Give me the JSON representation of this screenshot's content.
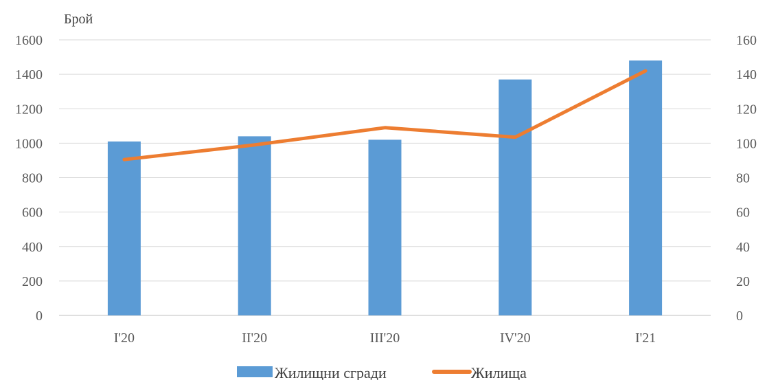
{
  "chart_data": {
    "type": "bar",
    "y_unit_label": "Брой",
    "categories": [
      "I'20",
      "II'20",
      "III'20",
      "IV'20",
      "I'21"
    ],
    "y_left": {
      "min": 0,
      "max": 1600,
      "step": 200
    },
    "y_right": {
      "min": 0,
      "max": 160,
      "step": 20
    },
    "series": [
      {
        "name": "Жилищни сгради",
        "type": "bar",
        "axis": "left",
        "color": "#5b9bd5",
        "values": [
          1010,
          1040,
          1020,
          1370,
          1480
        ]
      },
      {
        "name": "Жилища",
        "type": "line",
        "axis": "right",
        "color": "#ed7d31",
        "values": [
          90.5,
          99,
          109,
          103.5,
          142
        ]
      }
    ],
    "grid": true,
    "legend_position": "bottom"
  }
}
